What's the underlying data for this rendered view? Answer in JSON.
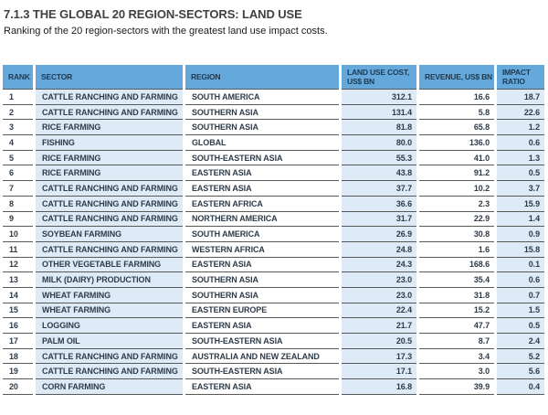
{
  "page": {
    "title": "7.1.3 THE GLOBAL 20 REGION-SECTORS: LAND USE",
    "subtitle": "Ranking of the 20 region-sectors with the greatest land use impact costs."
  },
  "table": {
    "columns": [
      "RANK",
      "SECTOR",
      "REGION",
      "LAND USE COST, US$ BN",
      "REVENUE, US$ BN",
      "IMPACT RATIO"
    ],
    "col_names": [
      "rank",
      "sector",
      "region",
      "land-use-cost",
      "revenue",
      "impact-ratio"
    ],
    "rows": [
      [
        "1",
        "CATTLE RANCHING AND FARMING",
        "SOUTH AMERICA",
        "312.1",
        "16.6",
        "18.7"
      ],
      [
        "2",
        "CATTLE RANCHING AND FARMING",
        "SOUTHERN ASIA",
        "131.4",
        "5.8",
        "22.6"
      ],
      [
        "3",
        "RICE FARMING",
        "SOUTHERN ASIA",
        "81.8",
        "65.8",
        "1.2"
      ],
      [
        "4",
        "FISHING",
        "GLOBAL",
        "80.0",
        "136.0",
        "0.6"
      ],
      [
        "5",
        "RICE FARMING",
        "SOUTH-EASTERN ASIA",
        "55.3",
        "41.0",
        "1.3"
      ],
      [
        "6",
        "RICE FARMING",
        "EASTERN ASIA",
        "43.8",
        "91.2",
        "0.5"
      ],
      [
        "7",
        "CATTLE RANCHING AND FARMING",
        "EASTERN ASIA",
        "37.7",
        "10.2",
        "3.7"
      ],
      [
        "8",
        "CATTLE RANCHING AND FARMING",
        "EASTERN AFRICA",
        "36.6",
        "2.3",
        "15.9"
      ],
      [
        "9",
        "CATTLE RANCHING AND FARMING",
        "NORTHERN AMERICA",
        "31.7",
        "22.9",
        "1.4"
      ],
      [
        "10",
        "SOYBEAN FARMING",
        "SOUTH AMERICA",
        "26.9",
        "30.8",
        "0.9"
      ],
      [
        "11",
        "CATTLE RANCHING AND FARMING",
        "WESTERN AFRICA",
        "24.8",
        "1.6",
        "15.8"
      ],
      [
        "12",
        "OTHER VEGETABLE FARMING",
        "EASTERN ASIA",
        "24.3",
        "168.6",
        "0.1"
      ],
      [
        "13",
        "MILK (DAIRY) PRODUCTION",
        "SOUTHERN ASIA",
        "23.0",
        "35.4",
        "0.6"
      ],
      [
        "14",
        "WHEAT FARMING",
        "SOUTHERN ASIA",
        "23.0",
        "31.8",
        "0.7"
      ],
      [
        "15",
        "WHEAT FARMING",
        "EASTERN EUROPE",
        "22.4",
        "15.2",
        "1.5"
      ],
      [
        "16",
        "LOGGING",
        "EASTERN ASIA",
        "21.7",
        "47.7",
        "0.5"
      ],
      [
        "17",
        "PALM OIL",
        "SOUTH-EASTERN ASIA",
        "20.5",
        "8.7",
        "2.4"
      ],
      [
        "18",
        "CATTLE RANCHING AND FARMING",
        "AUSTRALIA AND NEW ZEALAND",
        "17.3",
        "3.4",
        "5.2"
      ],
      [
        "19",
        "CATTLE RANCHING AND FARMING",
        "SOUTH-EASTERN ASIA",
        "17.1",
        "3.0",
        "5.6"
      ],
      [
        "20",
        "CORN FARMING",
        "EASTERN ASIA",
        "16.8",
        "39.9",
        "0.4"
      ]
    ]
  },
  "colors": {
    "page_bg": "#FFFFFF",
    "title_color": "#404040",
    "subtitle_color": "#1A1A1A",
    "header_bg": "#65A9DC",
    "header_text": "#203A50",
    "band_bg": "#DEEBF6",
    "body_text": "#2E3B49",
    "row_line": "#595959"
  }
}
